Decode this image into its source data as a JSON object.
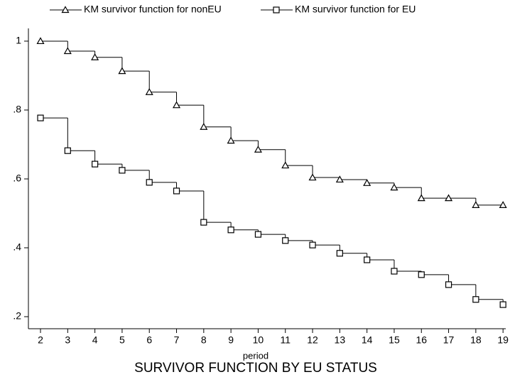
{
  "chart_data": {
    "type": "step",
    "title": "SURVIVOR FUNCTION BY EU STATUS",
    "x_label": "period",
    "x": [
      2,
      3,
      4,
      5,
      6,
      7,
      8,
      9,
      10,
      11,
      12,
      13,
      14,
      15,
      16,
      17,
      18,
      19
    ],
    "series": [
      {
        "name": "KM survivor function for nonEU",
        "color": "#000000",
        "marker": "triangle",
        "values": [
          1,
          0.971,
          0.953,
          0.913,
          0.852,
          0.814,
          0.751,
          0.711,
          0.685,
          0.639,
          0.604,
          0.598,
          0.588,
          0.575,
          0.544,
          0.544,
          0.524,
          0.524
        ]
      },
      {
        "name": "KM survivor function for EU",
        "color": "#000000",
        "marker": "square",
        "values": [
          0.777,
          0.682,
          0.643,
          0.625,
          0.59,
          0.565,
          0.474,
          0.452,
          0.439,
          0.421,
          0.408,
          0.384,
          0.365,
          0.332,
          0.322,
          0.293,
          0.25,
          0.235
        ]
      }
    ],
    "xlim": [
      1.556,
      19.1
    ],
    "xticks": [
      2,
      3,
      4,
      5,
      6,
      7,
      8,
      9,
      10,
      11,
      12,
      13,
      14,
      15,
      16,
      17,
      18,
      19
    ],
    "ylim": [
      0.165,
      1.037
    ],
    "yticks": [
      {
        "value": 0.2,
        "label": ".2"
      },
      {
        "value": 0.4,
        "label": ".4"
      },
      {
        "value": 0.6,
        "label": ".6"
      },
      {
        "value": 0.8,
        "label": ".8"
      },
      1
    ],
    "grid": false
  }
}
